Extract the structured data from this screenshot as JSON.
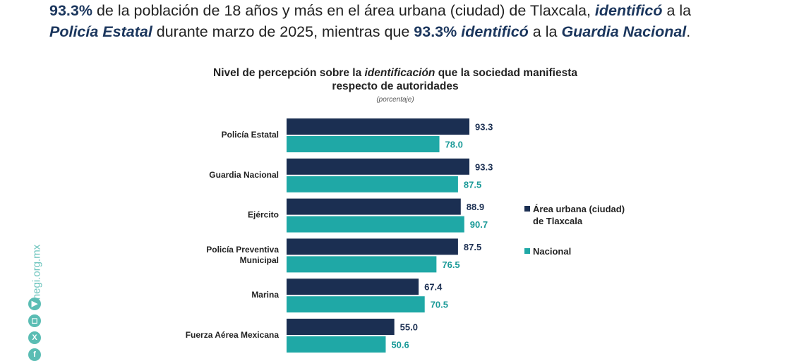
{
  "headline": {
    "p1": "93.3%",
    "p2": " de la población de 18 años y más en el área urbana (ciudad) de Tlaxcala, ",
    "p3": "identificó",
    "p4": " a la ",
    "p5": "Policía Estatal",
    "p6": " durante marzo de 2025, mientras que ",
    "p7": "93.3%",
    "p8": " ",
    "p9": "identificó",
    "p10": " a la ",
    "p11": "Guardia Nacional",
    "p12": "."
  },
  "chart_data": {
    "type": "bar",
    "orientation": "horizontal",
    "title_parts": [
      "Nivel de percepción sobre la ",
      "identificación",
      " que la sociedad manifiesta respecto de autoridades"
    ],
    "subtitle": "(porcentaje)",
    "categories": [
      "Policía Estatal",
      "Guardia Nacional",
      "Ejército",
      "Policía Preventiva Municipal",
      "Marina",
      "Fuerza Aérea Mexicana"
    ],
    "series": [
      {
        "name": "Área urbana (ciudad) de Tlaxcala",
        "color": "#1b2f52",
        "label_color": "#1b2f52",
        "values": [
          93.3,
          93.3,
          88.9,
          87.5,
          67.4,
          55.0
        ]
      },
      {
        "name": "Nacional",
        "color": "#1fa8a6",
        "label_color": "#1a9a98",
        "values": [
          78.0,
          87.5,
          90.7,
          76.5,
          70.5,
          50.6
        ]
      }
    ],
    "xlim": [
      0,
      100
    ],
    "legend_position": "right",
    "grid": false
  },
  "sidebar": {
    "site": "inegi.org.mx",
    "icons": [
      "youtube-icon",
      "instagram-icon",
      "x-icon",
      "facebook-icon"
    ]
  }
}
